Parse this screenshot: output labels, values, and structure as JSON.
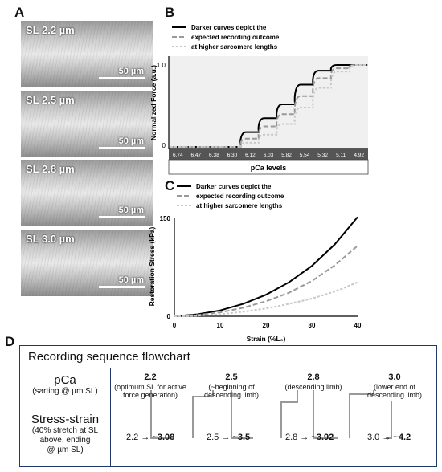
{
  "panels": {
    "A": "A",
    "B": "B",
    "C": "C",
    "D": "D"
  },
  "micrographs": [
    {
      "label": "SL 2.2 µm",
      "scale": "50 µm"
    },
    {
      "label": "SL 2.5 µm",
      "scale": "50 µm"
    },
    {
      "label": "SL 2.8 µm",
      "scale": "50 µm"
    },
    {
      "label": "SL 3.0 µm",
      "scale": "50 µm"
    }
  ],
  "chart_data": [
    {
      "type": "line",
      "legend": [
        "Darker curves depict the",
        "expected recording outcome",
        "at higher sarcomere lengths"
      ],
      "ylabel": "Normalized Force (a.u.)",
      "xlabel": "pCa levels",
      "yticks": [
        "1.0",
        "0"
      ],
      "categories": [
        "6.74",
        "6.47",
        "6.38",
        "6.30",
        "6.12",
        "6.03",
        "5.82",
        "5.54",
        "5.32",
        "5.11",
        "4.92"
      ],
      "series": [
        {
          "values": [
            0.0,
            0.0,
            0.0,
            0.0,
            0.18,
            0.35,
            0.52,
            0.76,
            0.93,
            1.0,
            1.0
          ]
        },
        {
          "values": [
            0.0,
            0.0,
            0.0,
            0.0,
            0.1,
            0.25,
            0.4,
            0.62,
            0.84,
            0.96,
            1.0
          ]
        },
        {
          "values": [
            0.0,
            0.0,
            0.0,
            0.0,
            0.05,
            0.15,
            0.28,
            0.48,
            0.72,
            0.92,
            1.0
          ]
        }
      ],
      "ylim": [
        0,
        1.0
      ],
      "legend_position": "top-left",
      "grid": false
    },
    {
      "type": "line",
      "legend": [
        "Darker curves depict the",
        "expected recording outcome",
        "at higher sarcomere lengths"
      ],
      "ylabel": "Restoration Stress (kPa)",
      "xlabel": "Strain (%L₀)",
      "xticks": [
        "0",
        "10",
        "20",
        "30",
        "40"
      ],
      "yticks": [
        "0",
        "150"
      ],
      "xlim": [
        0,
        40
      ],
      "ylim": [
        0,
        150
      ],
      "series": [
        {
          "x": [
            0,
            5,
            10,
            15,
            20,
            25,
            30,
            35,
            40
          ],
          "values": [
            0,
            3,
            9,
            19,
            33,
            52,
            77,
            110,
            152
          ]
        },
        {
          "x": [
            0,
            5,
            10,
            15,
            20,
            25,
            30,
            35,
            40
          ],
          "values": [
            0,
            2,
            6,
            13,
            23,
            36,
            54,
            78,
            108
          ]
        },
        {
          "x": [
            0,
            5,
            10,
            15,
            20,
            25,
            30,
            35,
            40
          ],
          "values": [
            0,
            1,
            3,
            7,
            12,
            19,
            27,
            38,
            52
          ]
        }
      ],
      "legend_position": "top-left",
      "grid": false
    }
  ],
  "flowchart": {
    "title": "Recording sequence flowchart",
    "row1_label": "pCa",
    "row1_sub": "(sarting @ µm SL)",
    "row2_label": "Stress-strain",
    "row2_sub": [
      "(40% stretch at SL",
      "above, ending",
      "@ µm SL)"
    ],
    "pca_steps": [
      {
        "value": "2.2",
        "desc": [
          "(optimum SL for active",
          "force generation)"
        ]
      },
      {
        "value": "2.5",
        "desc": [
          "(~beginning of",
          "descending limb)"
        ]
      },
      {
        "value": "2.8",
        "desc": [
          "(descending limb)"
        ]
      },
      {
        "value": "3.0",
        "desc": [
          "(lower end of",
          "descending limb)"
        ]
      }
    ],
    "ss_steps": [
      {
        "start": "2.2 →",
        "end": "~3.08"
      },
      {
        "start": "2.5 →",
        "end": "~3.5"
      },
      {
        "start": "2.8 →",
        "end": "~3.92"
      },
      {
        "start": "3.0 →",
        "end": "~4.2"
      }
    ]
  }
}
